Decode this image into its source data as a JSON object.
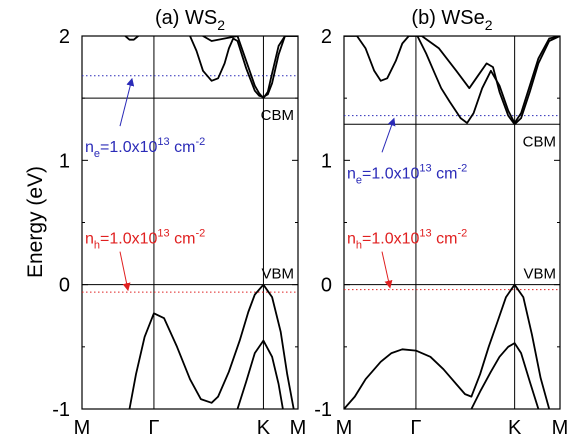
{
  "ylabel": "Energy (eV)",
  "panels": [
    {
      "label": "(a)",
      "material_base": "WS",
      "material_sub": "2",
      "cbm_label": "CBM",
      "vbm_label": "VBM",
      "ne": {
        "prefix": "n",
        "sub": "e",
        "value": "=1.0x10",
        "exp": "13",
        "unit": " cm",
        "unit_exp": "-2"
      },
      "nh": {
        "prefix": "n",
        "sub": "h",
        "value": "=1.0x10",
        "exp": "13",
        "unit": " cm",
        "unit_exp": "-2"
      }
    },
    {
      "label": "(b)",
      "material_base": "WSe",
      "material_sub": "2",
      "cbm_label": "CBM",
      "vbm_label": "VBM",
      "ne": {
        "prefix": "n",
        "sub": "e",
        "value": "=1.0x10",
        "exp": "13",
        "unit": " cm",
        "unit_exp": "-2"
      },
      "nh": {
        "prefix": "n",
        "sub": "h",
        "value": "=1.0x10",
        "exp": "13",
        "unit": " cm",
        "unit_exp": "-2"
      }
    }
  ],
  "colors": {
    "line": "#000000",
    "electron": "#2b2bb8",
    "hole": "#e02020"
  },
  "chart_data": [
    {
      "type": "line",
      "title": "(a) WS2",
      "ylabel": "Energy (eV)",
      "ylim": [
        -1,
        2
      ],
      "xlim": [
        0,
        1
      ],
      "xticks": [
        {
          "label": "M",
          "x": 0
        },
        {
          "label": "Γ",
          "x": 0.333
        },
        {
          "label": "K",
          "x": 0.84
        },
        {
          "label": "M",
          "x": 1
        }
      ],
      "yticks": [
        -1,
        0,
        1,
        2
      ],
      "cbm": 1.5,
      "vbm": 0.0,
      "electron_fermi_level": 1.68,
      "hole_fermi_level": -0.06,
      "series": [
        {
          "x": [
            0.22,
            0.25,
            0.29,
            0.333,
            0.38,
            0.44,
            0.5,
            0.55,
            0.6,
            0.63
          ],
          "y": [
            -1.0,
            -0.72,
            -0.42,
            -0.23,
            -0.27,
            -0.5,
            -0.76,
            -0.92,
            -0.95,
            -0.9
          ]
        },
        {
          "x": [
            0.63,
            0.68,
            0.73,
            0.77,
            0.8,
            0.84,
            0.88,
            0.92,
            0.95,
            0.98
          ],
          "y": [
            -0.9,
            -0.7,
            -0.45,
            -0.22,
            -0.08,
            0.0,
            -0.1,
            -0.38,
            -0.72,
            -1.0
          ]
        },
        {
          "x": [
            0.72,
            0.76,
            0.8,
            0.84,
            0.88,
            0.91,
            0.93
          ],
          "y": [
            -1.0,
            -0.78,
            -0.55,
            -0.45,
            -0.58,
            -0.8,
            -1.0
          ]
        },
        {
          "x": [
            0.2,
            0.22,
            0.24,
            0.26
          ],
          "y": [
            2.0,
            1.97,
            1.97,
            2.0
          ]
        },
        {
          "x": [
            0.5,
            0.53,
            0.56,
            0.6,
            0.63,
            0.66,
            0.68,
            0.7,
            0.72,
            0.76,
            0.8,
            0.82,
            0.84,
            0.86,
            0.88,
            0.91,
            0.94,
            0.97,
            1.0
          ],
          "y": [
            2.0,
            1.88,
            1.72,
            1.64,
            1.66,
            1.78,
            1.9,
            1.98,
            1.96,
            1.74,
            1.56,
            1.52,
            1.51,
            1.53,
            1.62,
            1.85,
            2.0,
            2.0,
            2.0
          ]
        },
        {
          "x": [
            0.56,
            0.6,
            0.66,
            0.72,
            0.76,
            0.8,
            0.82,
            0.84,
            0.86,
            0.88,
            0.91,
            0.94,
            0.97,
            1.0
          ],
          "y": [
            2.0,
            1.96,
            1.98,
            2.0,
            1.8,
            1.6,
            1.54,
            1.5,
            1.55,
            1.7,
            1.92,
            2.0,
            2.0,
            2.0
          ]
        }
      ]
    },
    {
      "type": "line",
      "title": "(b) WSe2",
      "ylabel": "",
      "ylim": [
        -1,
        2
      ],
      "xlim": [
        0,
        1
      ],
      "xticks": [
        {
          "label": "M",
          "x": 0
        },
        {
          "label": "Γ",
          "x": 0.333
        },
        {
          "label": "K",
          "x": 0.79
        },
        {
          "label": "M",
          "x": 1
        }
      ],
      "yticks": [
        -1,
        0,
        1,
        2
      ],
      "cbm": 1.29,
      "vbm": 0.0,
      "electron_fermi_level": 1.36,
      "hole_fermi_level": -0.04,
      "series": [
        {
          "x": [
            0.0,
            0.05,
            0.1,
            0.17,
            0.22,
            0.27,
            0.333,
            0.4,
            0.46,
            0.52,
            0.56,
            0.59
          ],
          "y": [
            -1.0,
            -0.9,
            -0.76,
            -0.62,
            -0.55,
            -0.52,
            -0.53,
            -0.58,
            -0.68,
            -0.8,
            -0.88,
            -0.9
          ]
        },
        {
          "x": [
            0.59,
            0.63,
            0.67,
            0.71,
            0.75,
            0.79,
            0.83,
            0.87,
            0.91,
            0.95
          ],
          "y": [
            -0.9,
            -0.72,
            -0.5,
            -0.3,
            -0.1,
            0.0,
            -0.1,
            -0.4,
            -0.75,
            -1.0
          ]
        },
        {
          "x": [
            0.59,
            0.63,
            0.68,
            0.72,
            0.76,
            0.79,
            0.82,
            0.86,
            0.9
          ],
          "y": [
            -1.0,
            -0.86,
            -0.7,
            -0.58,
            -0.5,
            -0.47,
            -0.55,
            -0.78,
            -1.0
          ]
        },
        {
          "x": [
            0.0,
            0.06,
            0.1,
            0.14,
            0.17,
            0.2,
            0.24,
            0.27,
            0.3
          ],
          "y": [
            2.0,
            2.0,
            1.9,
            1.72,
            1.64,
            1.66,
            1.8,
            1.94,
            2.0
          ]
        },
        {
          "x": [
            0.34,
            0.38,
            0.42,
            0.45,
            0.49,
            0.54,
            0.57,
            0.6,
            0.64,
            0.68,
            0.72,
            0.76,
            0.79,
            0.82,
            0.86,
            0.9,
            0.95,
            1.0
          ],
          "y": [
            2.0,
            1.86,
            1.7,
            1.58,
            1.47,
            1.34,
            1.3,
            1.38,
            1.58,
            1.72,
            1.6,
            1.4,
            1.3,
            1.38,
            1.6,
            1.82,
            1.98,
            2.0
          ]
        },
        {
          "x": [
            0.3,
            0.36,
            0.44,
            0.52,
            0.58,
            0.62,
            0.66,
            0.69,
            0.72,
            0.76,
            0.79,
            0.82,
            0.86,
            0.9,
            0.95,
            1.0
          ],
          "y": [
            2.0,
            2.0,
            1.9,
            1.72,
            1.58,
            1.68,
            1.78,
            1.75,
            1.55,
            1.36,
            1.29,
            1.34,
            1.55,
            1.78,
            1.96,
            2.0
          ]
        }
      ]
    }
  ]
}
